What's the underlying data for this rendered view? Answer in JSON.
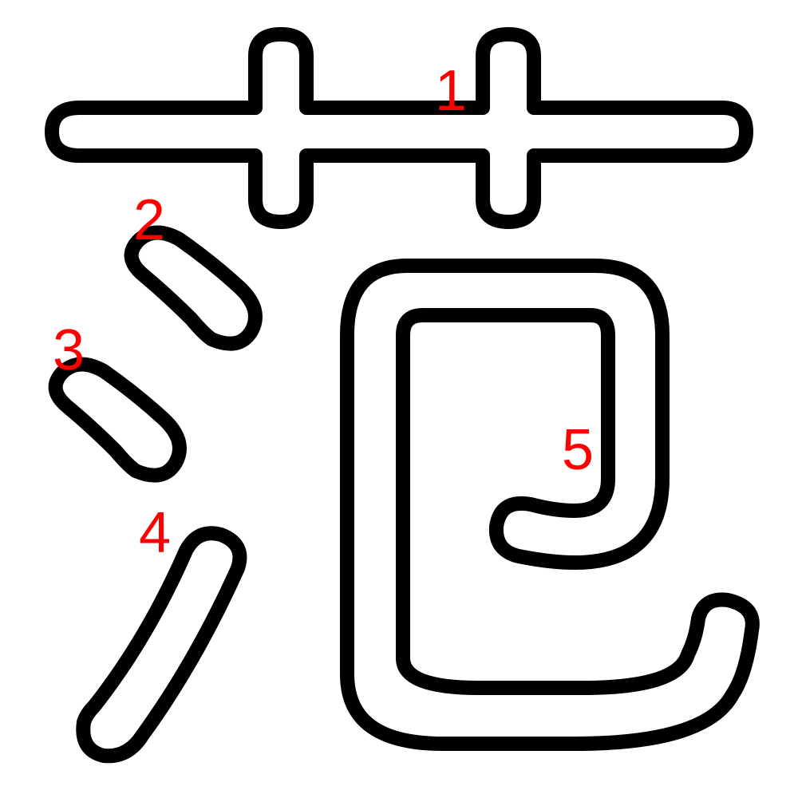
{
  "character": {
    "strokes": [
      {
        "id": 1,
        "label": "1",
        "part": "grass-radical"
      },
      {
        "id": 2,
        "label": "2",
        "part": "water-dot-top"
      },
      {
        "id": 3,
        "label": "3",
        "part": "water-dot-middle"
      },
      {
        "id": 4,
        "label": "4",
        "part": "water-rising-stroke"
      },
      {
        "id": 5,
        "label": "5",
        "part": "hook-enclosure"
      }
    ]
  },
  "colors": {
    "outline": "#000000",
    "fill": "#ffffff",
    "number": "#ff0000",
    "background": "#ffffff"
  }
}
